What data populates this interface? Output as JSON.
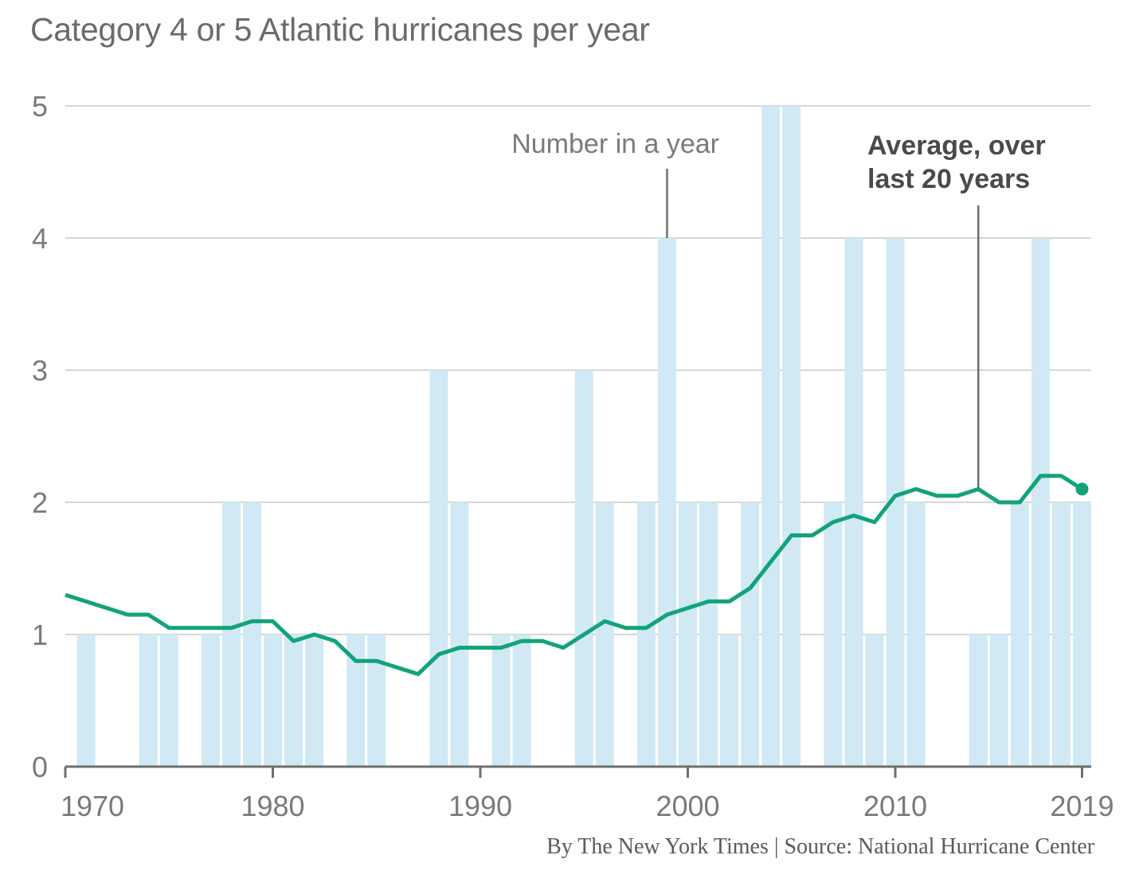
{
  "chart_data": {
    "type": "bar",
    "title": "Category 4 or 5 Atlantic hurricanes per year",
    "xlabel": "",
    "ylabel": "",
    "ylim": [
      0,
      5
    ],
    "yticks": [
      0,
      1,
      2,
      3,
      4,
      5
    ],
    "grid": true,
    "xtick_labels": [
      "1970",
      "1980",
      "1990",
      "2000",
      "2010",
      "2019"
    ],
    "xticks": [
      1970,
      1980,
      1990,
      2000,
      2010,
      2019
    ],
    "x": [
      1970,
      1971,
      1972,
      1973,
      1974,
      1975,
      1976,
      1977,
      1978,
      1979,
      1980,
      1981,
      1982,
      1983,
      1984,
      1985,
      1986,
      1987,
      1988,
      1989,
      1990,
      1991,
      1992,
      1993,
      1994,
      1995,
      1996,
      1997,
      1998,
      1999,
      2000,
      2001,
      2002,
      2003,
      2004,
      2005,
      2006,
      2007,
      2008,
      2009,
      2010,
      2011,
      2012,
      2013,
      2014,
      2015,
      2016,
      2017,
      2018,
      2019
    ],
    "series": [
      {
        "name": "Number in a year",
        "type": "bar",
        "color": "#d0e9f4",
        "values": [
          0,
          1,
          0,
          0,
          1,
          1,
          0,
          1,
          2,
          2,
          1,
          1,
          1,
          0,
          1,
          1,
          0,
          0,
          3,
          2,
          0,
          1,
          1,
          0,
          0,
          3,
          2,
          0,
          2,
          4,
          2,
          2,
          1,
          2,
          5,
          5,
          0,
          2,
          4,
          1,
          4,
          2,
          0,
          0,
          1,
          1,
          2,
          4,
          2,
          2
        ]
      },
      {
        "name": "Average, over last 20 years",
        "type": "line",
        "color": "#12a37b",
        "values": [
          1.3,
          1.25,
          1.2,
          1.15,
          1.15,
          1.05,
          1.05,
          1.05,
          1.05,
          1.1,
          1.1,
          0.95,
          1.0,
          0.95,
          0.8,
          0.8,
          0.75,
          0.7,
          0.85,
          0.9,
          0.9,
          0.9,
          0.95,
          0.95,
          0.9,
          1.0,
          1.1,
          1.05,
          1.05,
          1.15,
          1.2,
          1.25,
          1.25,
          1.35,
          1.55,
          1.75,
          1.75,
          1.85,
          1.9,
          1.85,
          2.05,
          2.1,
          2.05,
          2.05,
          2.1,
          2.0,
          2.0,
          2.2,
          2.2,
          2.1
        ]
      }
    ],
    "annotations": [
      {
        "text": "Number in a year",
        "points_to_year": 1999,
        "points_to_value": 4
      },
      {
        "text_lines": [
          "Average, over",
          "last 20 years"
        ],
        "points_to_year": 2014,
        "points_to_value": 2.1
      }
    ],
    "credit": "By The New York Times | Source: National Hurricane Center"
  }
}
